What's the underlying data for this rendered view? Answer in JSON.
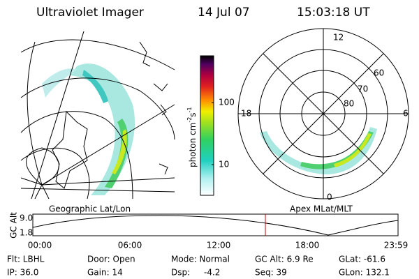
{
  "header": {
    "title": "Ultraviolet Imager",
    "date": "14 Jul 07",
    "time": "15:03:18 UT"
  },
  "colorbar": {
    "label": "photon cm",
    "exp1": "-2",
    "unit2": "s",
    "exp2": "-1",
    "ticks": [
      "100",
      "10"
    ]
  },
  "left_map": {
    "label": "Geographic Lat/Lon"
  },
  "polar_map": {
    "label": "Apex MLat/MLT",
    "mlt_labels": [
      "12",
      "6",
      "0",
      "18"
    ],
    "lat_labels": [
      "60",
      "70",
      "80"
    ]
  },
  "altitude_plot": {
    "label": "GC Alt",
    "y_labels": [
      "9.0",
      "1.8"
    ],
    "x_labels": [
      "00:00",
      "06:00",
      "12:00",
      "18:00",
      "23:59"
    ]
  },
  "footer": {
    "row1": [
      "Flt: LBHL",
      "Door: Open",
      "Mode: Normal",
      "GC Alt: 6.9 Re",
      "GLat: -61.6"
    ],
    "row2": [
      "IP: 36.0",
      "Gain: 14",
      "Dsp:",
      "-4.2",
      "Seq: 39",
      "GLon: 132.1"
    ]
  }
}
